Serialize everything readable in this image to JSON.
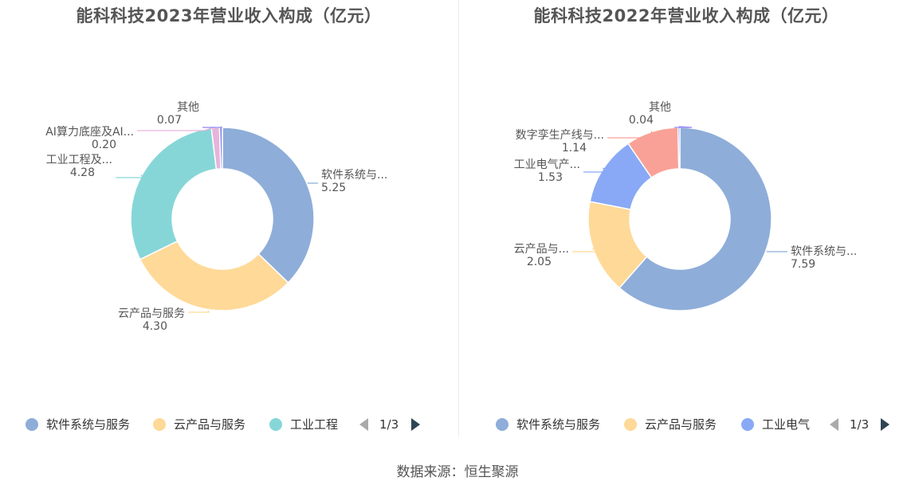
{
  "source_text": "数据来源：恒生聚源",
  "chart_data": [
    {
      "type": "pie",
      "donut": true,
      "title": "能科科技2023年营业收入构成（亿元）",
      "slices": [
        {
          "name": "软件系统与服务",
          "display_name": "软件系统与...",
          "value": 5.25,
          "value_label": "5.25",
          "color": "#8eadd9"
        },
        {
          "name": "云产品与服务",
          "display_name": "云产品与服务",
          "value": 4.3,
          "value_label": "4.30",
          "color": "#ffd998"
        },
        {
          "name": "工业工程及...",
          "display_name": "工业工程及...",
          "value": 4.28,
          "value_label": "4.28",
          "color": "#86d6d8"
        },
        {
          "name": "AI算力底座及AI...",
          "display_name": "AI算力底座及AI...",
          "value": 0.2,
          "value_label": "0.20",
          "color": "#e6b4d9"
        },
        {
          "name": "其他",
          "display_name": "其他",
          "value": 0.07,
          "value_label": "0.07",
          "color": "#8e86f0"
        }
      ],
      "legend": {
        "items": [
          "软件系统与服务",
          "云产品与服务",
          "工业工程"
        ],
        "colors": [
          "#8eadd9",
          "#ffd998",
          "#86d6d8"
        ],
        "page": "1/3"
      }
    },
    {
      "type": "pie",
      "donut": true,
      "title": "能科科技2022年营业收入构成（亿元）",
      "slices": [
        {
          "name": "软件系统与服务",
          "display_name": "软件系统与...",
          "value": 7.59,
          "value_label": "7.59",
          "color": "#8eadd9"
        },
        {
          "name": "云产品与服务",
          "display_name": "云产品与...",
          "value": 2.05,
          "value_label": "2.05",
          "color": "#ffd998"
        },
        {
          "name": "工业电气产...",
          "display_name": "工业电气产...",
          "value": 1.53,
          "value_label": "1.53",
          "color": "#89a9f6"
        },
        {
          "name": "数字孪生产线与...",
          "display_name": "数字孪生产线与...",
          "value": 1.14,
          "value_label": "1.14",
          "color": "#f9a197"
        },
        {
          "name": "其他",
          "display_name": "其他",
          "value": 0.04,
          "value_label": "0.04",
          "color": "#8e86f0"
        }
      ],
      "legend": {
        "items": [
          "软件系统与服务",
          "云产品与服务",
          "工业电气"
        ],
        "colors": [
          "#8eadd9",
          "#ffd998",
          "#89a9f6"
        ],
        "page": "1/3"
      }
    }
  ]
}
